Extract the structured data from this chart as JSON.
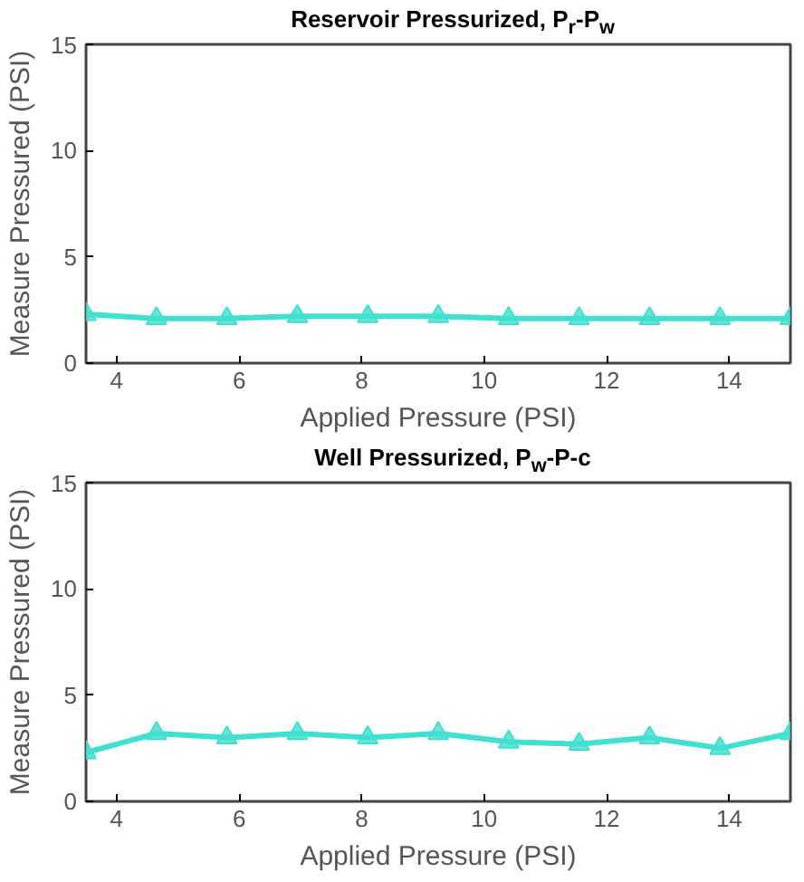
{
  "chart_data": [
    {
      "type": "line",
      "title": "Reservoir Pressurized, P$_{r}$-P$_{w}$",
      "xlabel": "Applied Pressure (PSI)",
      "ylabel": "Measure Pressured (PSI)",
      "x": [
        3.5,
        4.65,
        5.8,
        6.95,
        8.1,
        9.25,
        10.4,
        11.55,
        12.7,
        13.85,
        15
      ],
      "series": [
        {
          "color": "#40e0d0",
          "values": [
            2.3,
            2.1,
            2.1,
            2.2,
            2.2,
            2.2,
            2.1,
            2.1,
            2.1,
            2.1,
            2.1
          ]
        }
      ],
      "xlim": [
        3.5,
        15
      ],
      "ylim": [
        0,
        15
      ],
      "xticks": [
        4,
        6,
        8,
        10,
        12,
        14
      ],
      "yticks": [
        0,
        5,
        10,
        15
      ],
      "grid": false,
      "marker": "triangle",
      "line_style": "solid"
    },
    {
      "type": "line",
      "title": "Well Pressurized, P$_{w}$-P-c",
      "xlabel": "Applied Pressure (PSI)",
      "ylabel": "Measure Pressured (PSI)",
      "x": [
        3.5,
        4.65,
        5.8,
        6.95,
        8.1,
        9.25,
        10.4,
        11.55,
        12.7,
        13.85,
        15
      ],
      "series": [
        {
          "color": "#40e0d0",
          "values": [
            2.3,
            3.2,
            3.0,
            3.2,
            3.0,
            3.2,
            2.8,
            2.7,
            3.0,
            2.5,
            3.2
          ]
        }
      ],
      "xlim": [
        3.5,
        15
      ],
      "ylim": [
        0,
        15
      ],
      "xticks": [
        4,
        6,
        8,
        10,
        12,
        14
      ],
      "yticks": [
        0,
        5,
        10,
        15
      ],
      "grid": false,
      "marker": "triangle",
      "line_style": "solid"
    }
  ]
}
